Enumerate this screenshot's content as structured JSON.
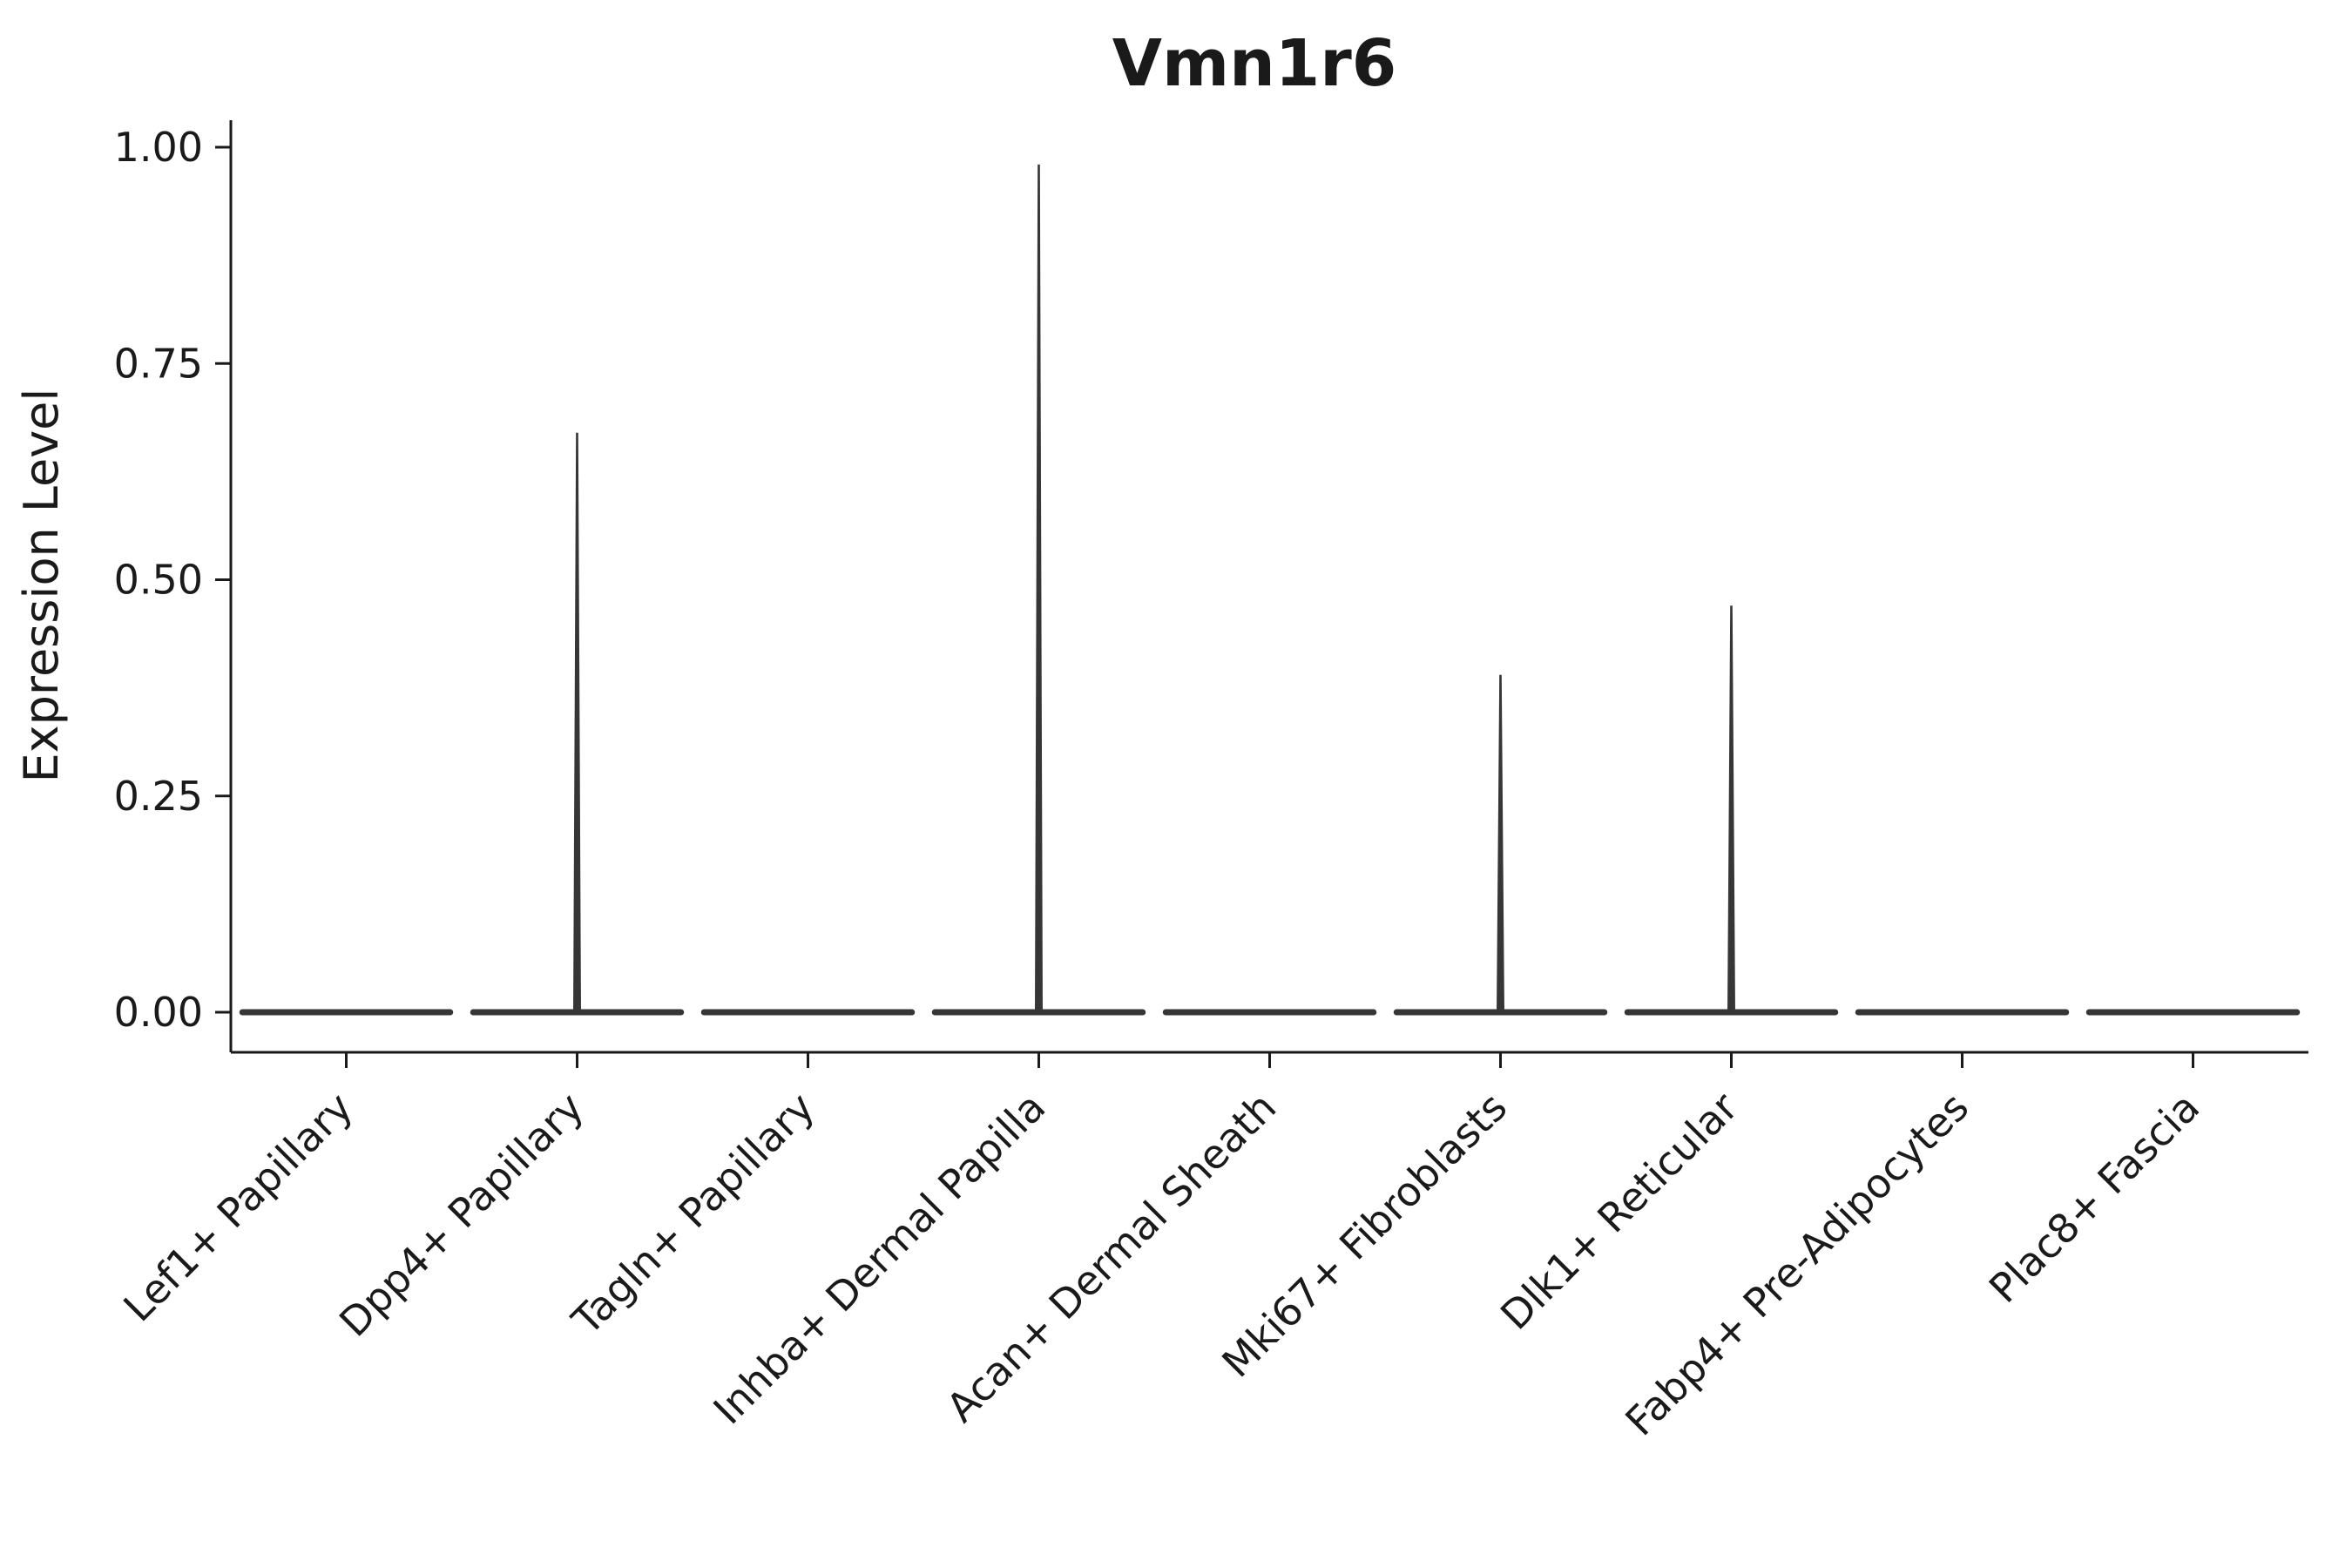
{
  "chart_data": {
    "type": "violin",
    "title": "Vmn1r6",
    "xlabel": "",
    "ylabel": "Expression Level",
    "ylim": [
      0,
      1.0
    ],
    "yticks": [
      0.0,
      0.25,
      0.5,
      0.75,
      1.0
    ],
    "ytick_labels": [
      "0.00",
      "0.25",
      "0.50",
      "0.75",
      "1.00"
    ],
    "categories": [
      "Lef1+ Papillary",
      "Dpp4+ Papillary",
      "Tagln+ Papillary",
      "Inhba+ Dermal Papilla",
      "Acan+ Dermal Sheath",
      "Mki67+ Fibroblasts",
      "Dlk1+ Reticular",
      "Fabp4+ Pre-Adipocytes",
      "Plac8+ Fascia"
    ],
    "series": [
      {
        "name": "max_expression_spike",
        "values": [
          0,
          0.67,
          0,
          0.98,
          0,
          0.39,
          0.47,
          0,
          0
        ]
      }
    ],
    "baseline_value": 0.0,
    "legend": "none",
    "grid": "off",
    "notes": "Violin bodies are collapsed flat at expression 0 for every cluster; narrow vertical spikes rise to the max expression value for Dpp4+ Papillary, Inhba+ Dermal Papilla, Mki67+ Fibroblasts and Dlk1+ Reticular.",
    "colors": {
      "violin": "#363636",
      "axis": "#1a1a1a",
      "text": "#1a1a1a",
      "background": "#ffffff"
    }
  }
}
